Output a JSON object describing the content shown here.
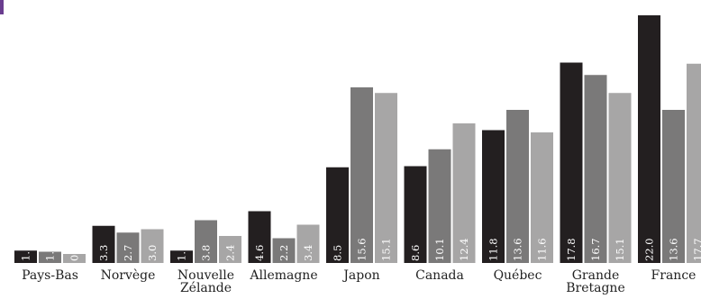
{
  "chart_data": {
    "type": "bar",
    "categories": [
      [
        "Pays-Bas"
      ],
      [
        "Norvège"
      ],
      [
        "Nouvelle",
        "Zélande"
      ],
      [
        "Allemagne"
      ],
      [
        "Japon"
      ],
      [
        "Canada"
      ],
      [
        "Québec"
      ],
      [
        "Grande",
        "Bretagne"
      ],
      [
        "France"
      ]
    ],
    "series": [
      {
        "color": "#231f20",
        "values": [
          1.1,
          3.3,
          1.1,
          4.6,
          8.5,
          8.6,
          11.8,
          17.8,
          22.0
        ],
        "labels": [
          "1.1",
          "3.3",
          "1.1",
          "4.6",
          "8.5",
          "8.6",
          "11.8",
          "17.8",
          "22.0"
        ]
      },
      {
        "color": "#7a7979",
        "values": [
          1.0,
          2.7,
          3.8,
          2.2,
          15.6,
          10.1,
          13.6,
          16.7,
          13.6
        ],
        "labels": [
          "1.0",
          "2.7",
          "3.8",
          "2.2",
          "15.6",
          "10.1",
          "13.6",
          "16.7",
          "13.6"
        ]
      },
      {
        "color": "#a7a6a6",
        "values": [
          0.8,
          3.0,
          2.4,
          3.4,
          15.1,
          12.4,
          11.6,
          15.1,
          17.7
        ],
        "labels": [
          "0.8",
          "3.0",
          "2.4",
          "3.4",
          "15.1",
          "12.4",
          "11.6",
          "15.1",
          "17.7"
        ]
      }
    ]
  }
}
